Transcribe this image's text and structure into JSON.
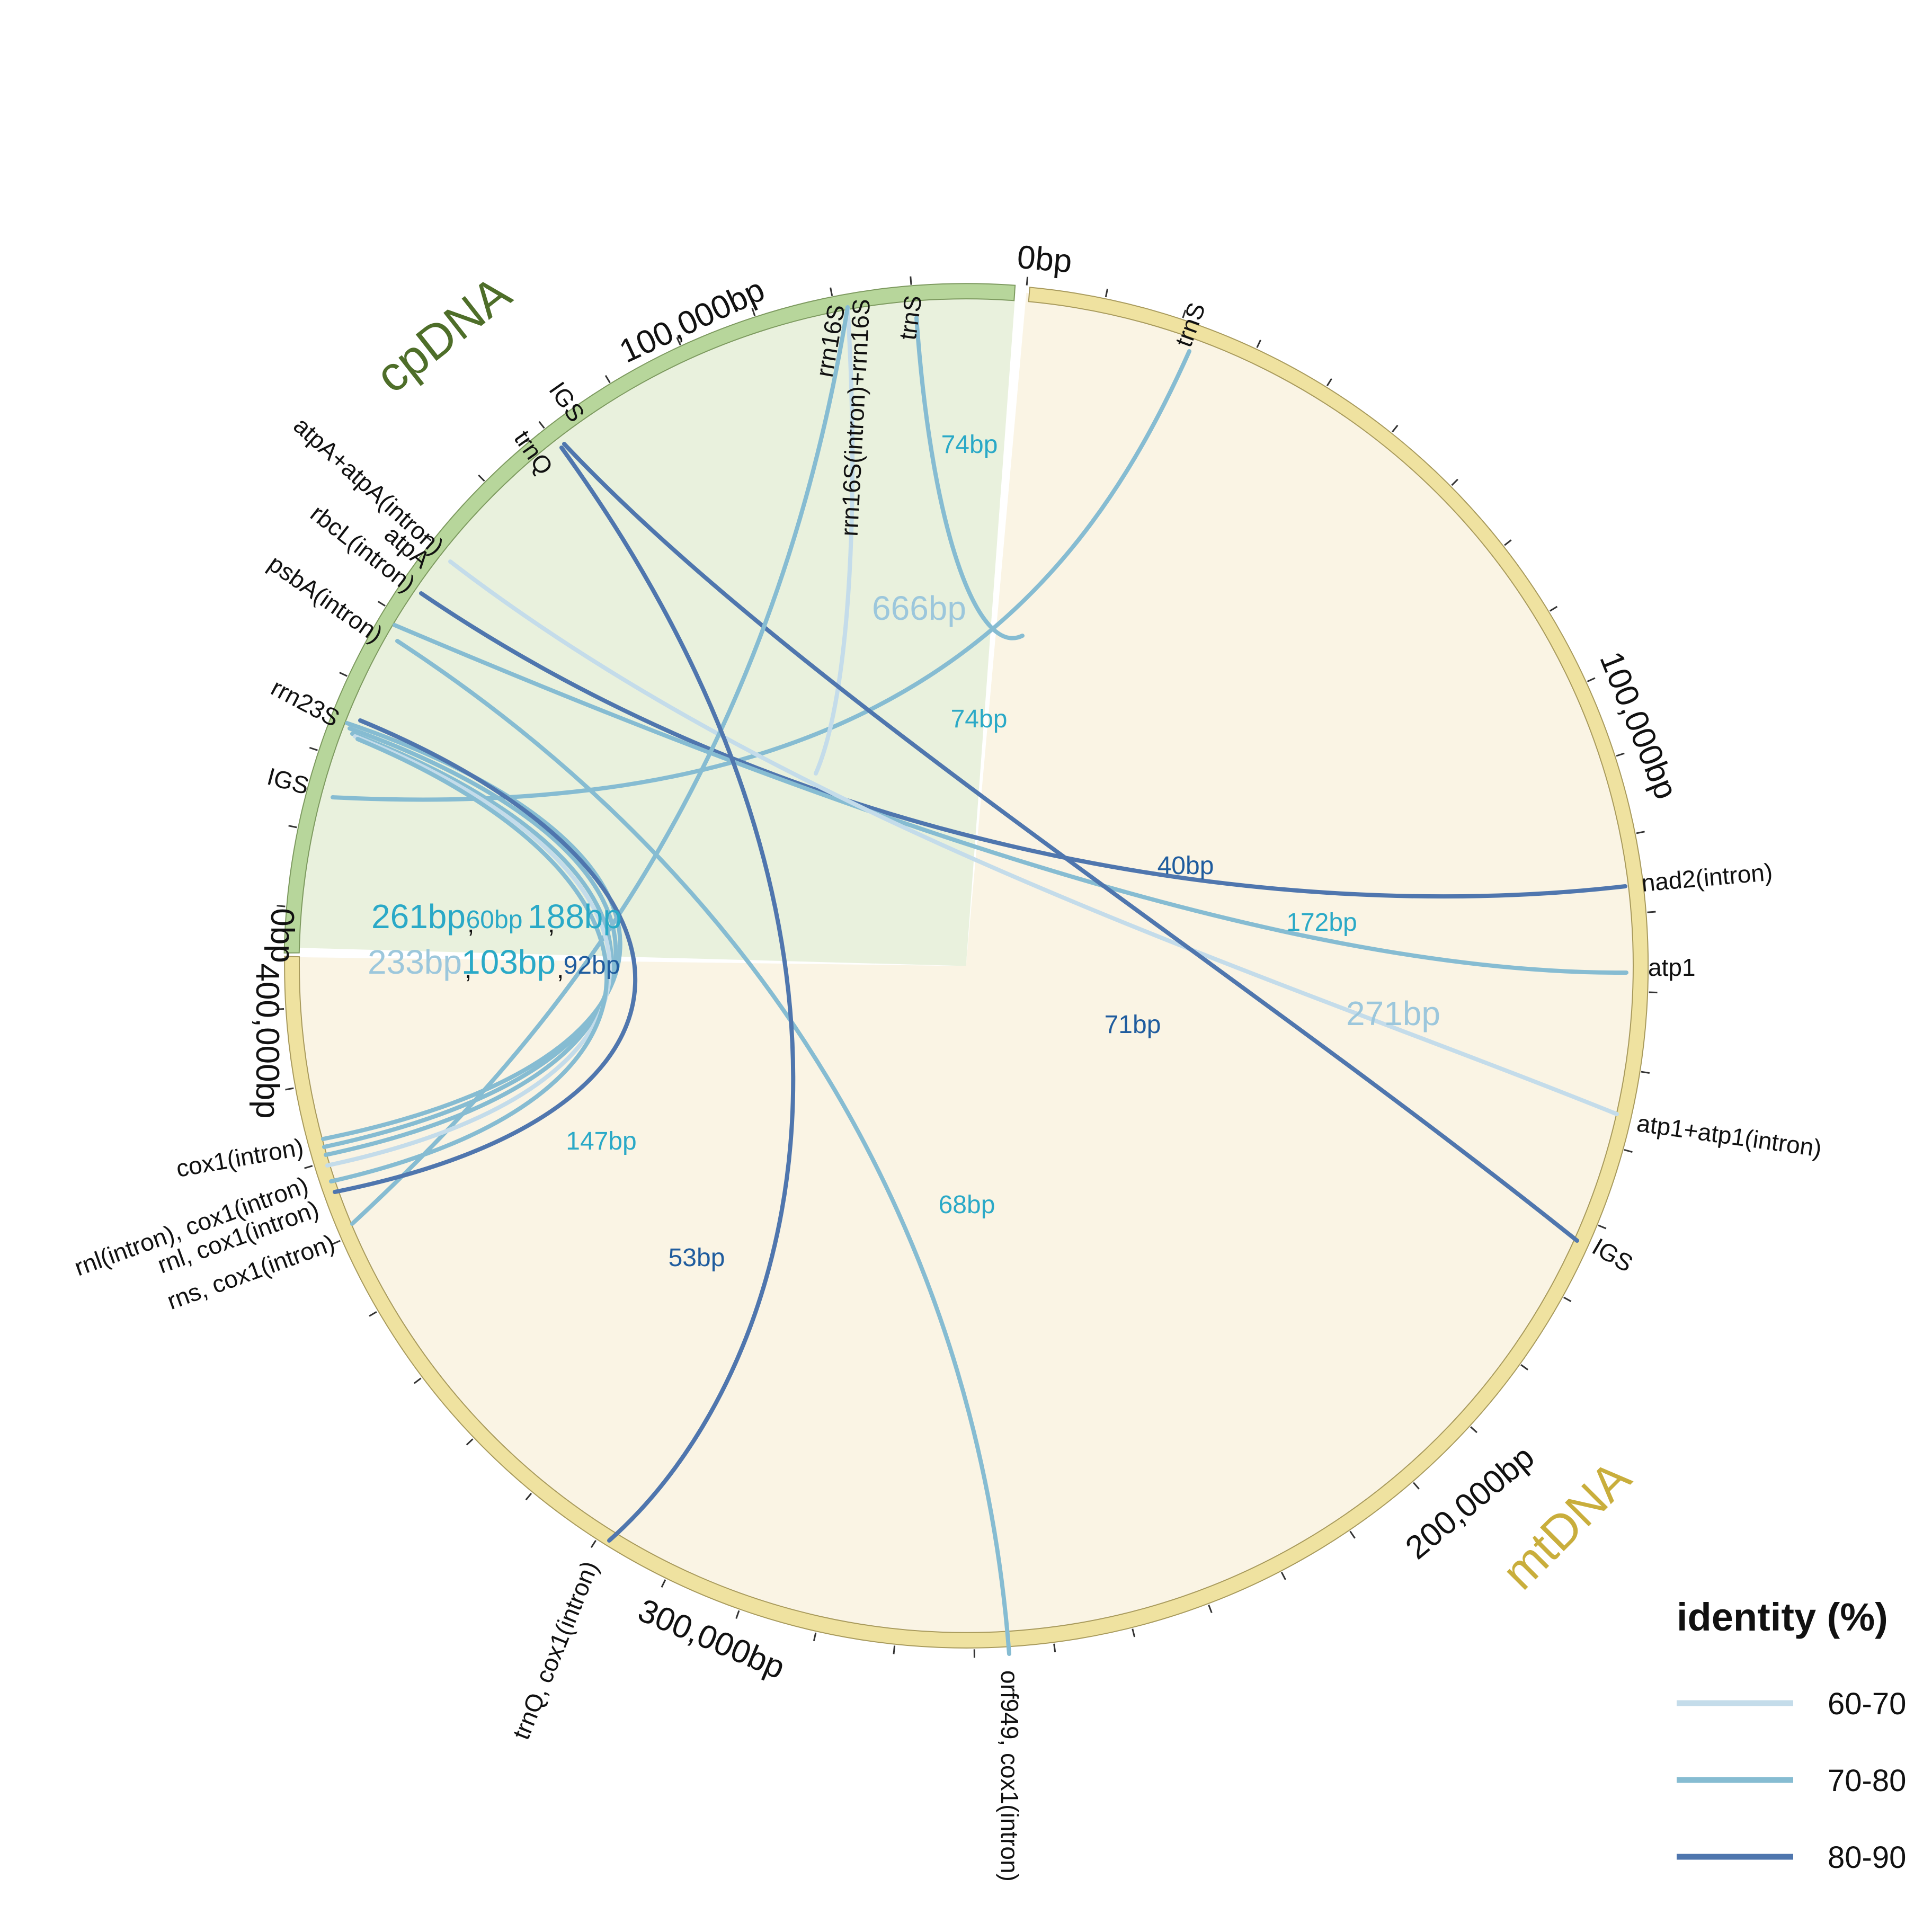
{
  "colors": {
    "cp_fill": "#e9f1dd",
    "cp_ring": "#b7d69b",
    "cp_title": "#4e6e29",
    "mt_fill": "#faf4e4",
    "mt_ring": "#efe2a0",
    "mt_title": "#c9ae3c",
    "id60": "#c4dcea",
    "id70": "#86bcd2",
    "id80": "#4f76ae"
  },
  "genomes": {
    "cp": {
      "title": "cpDNA",
      "axis_labels": [
        "0bp",
        "100,000bp"
      ]
    },
    "mt": {
      "title": "mtDNA",
      "axis_labels": [
        "0bp",
        "100,000bp",
        "200,000bp",
        "300,000bp",
        "400,000bp"
      ]
    }
  },
  "segment_labels": [
    "trnS",
    "nad2(intron)",
    "atp1",
    "atp1+atp1(intron)",
    "IGS",
    "orf949, cox1(intron)",
    "trnQ, cox1(intron)",
    "rns, cox1(intron)",
    "rnl, cox1(intron)",
    "rnl(intron), cox1(intron)",
    "cox1(intron)",
    "IGS",
    "rrn23S",
    "psbA(intron)",
    "rbcL(intron)",
    "atpA",
    "atpA+atpA(intron)",
    "trnQ",
    "IGS",
    "rrn16S",
    "rrn16S(intron)+rrn16S",
    "trnS"
  ],
  "links": [
    {
      "label": "74bp",
      "identity": "70-80"
    },
    {
      "label": "74bp",
      "identity": "70-80"
    },
    {
      "label": "666bp",
      "identity": "60-70"
    },
    {
      "label": "40bp",
      "identity": "80-90"
    },
    {
      "label": "172bp",
      "identity": "70-80"
    },
    {
      "label": "271bp",
      "identity": "60-70"
    },
    {
      "label": "71bp",
      "identity": "80-90"
    },
    {
      "label": "147bp",
      "identity": "70-80"
    },
    {
      "label": "68bp",
      "identity": "70-80"
    },
    {
      "label": "53bp",
      "identity": "80-90"
    },
    {
      "label": "261bp",
      "identity": "70-80"
    },
    {
      "label": "60bp",
      "identity": "70-80"
    },
    {
      "label": "188bp",
      "identity": "70-80"
    },
    {
      "label": "233bp",
      "identity": "60-70"
    },
    {
      "label": "103bp",
      "identity": "70-80"
    },
    {
      "label": "92bp",
      "identity": "80-90"
    }
  ],
  "legend": {
    "title": "identity (%)",
    "items": [
      {
        "label": "60-70",
        "color": "#c4dcea"
      },
      {
        "label": "70-80",
        "color": "#86bcd2"
      },
      {
        "label": "80-90",
        "color": "#4f76ae"
      }
    ]
  }
}
